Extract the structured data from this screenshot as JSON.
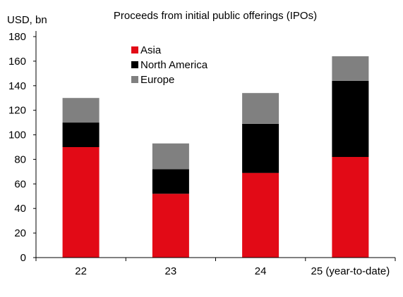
{
  "chart_data": {
    "type": "bar",
    "stacked": true,
    "title": "Proceeds from initial public offerings (IPOs)",
    "ylabel": "USD, bn",
    "xlabel": "",
    "categories": [
      "22",
      "23",
      "24",
      "25 (year-to-date)"
    ],
    "ylim": [
      0,
      180
    ],
    "yticks": [
      0,
      20,
      40,
      60,
      80,
      100,
      120,
      140,
      160,
      180
    ],
    "grid": false,
    "legend_position": "top-center",
    "series": [
      {
        "name": "Asia",
        "color": "#e20a16",
        "values": [
          90,
          52,
          69,
          82
        ]
      },
      {
        "name": "North America",
        "color": "#000000",
        "values": [
          20,
          20,
          40,
          62
        ]
      },
      {
        "name": "Europe",
        "color": "#808080",
        "values": [
          20,
          21,
          25,
          20
        ]
      }
    ]
  }
}
